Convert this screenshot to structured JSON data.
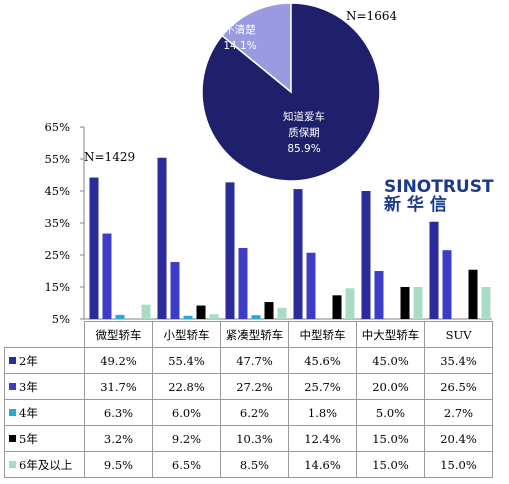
{
  "chart_data": [
    {
      "type": "pie",
      "annotation": "N=1664",
      "slices": [
        {
          "label": "知道爱车\n质保期",
          "value": 85.9,
          "value_label": "85.9%",
          "color": "#1f1f6b"
        },
        {
          "label": "不清楚",
          "value": 14.1,
          "value_label": "14.1%",
          "color": "#9a9ae0"
        }
      ]
    },
    {
      "type": "bar",
      "annotation": "N=1429",
      "categories": [
        "微型轿车",
        "小型轿车",
        "紧凑型轿车",
        "中型轿车",
        "中大型轿车",
        "SUV"
      ],
      "series": [
        {
          "name": "2年",
          "color": "#2b2b9a",
          "values": [
            49.2,
            55.4,
            47.7,
            45.6,
            45.0,
            35.4
          ],
          "labels": [
            "49.2%",
            "55.4%",
            "47.7%",
            "45.6%",
            "45.0%",
            "35.4%"
          ]
        },
        {
          "name": "3年",
          "color": "#3c3cc4",
          "values": [
            31.7,
            22.8,
            27.2,
            25.7,
            20.0,
            26.5
          ],
          "labels": [
            "31.7%",
            "22.8%",
            "27.2%",
            "25.7%",
            "20.0%",
            "26.5%"
          ]
        },
        {
          "name": "4年",
          "color": "#2ba7d6",
          "values": [
            6.3,
            6.0,
            6.2,
            1.8,
            5.0,
            2.7
          ],
          "labels": [
            "6.3%",
            "6.0%",
            "6.2%",
            "1.8%",
            "5.0%",
            "2.7%"
          ]
        },
        {
          "name": "5年",
          "color": "#000000",
          "values": [
            3.2,
            9.2,
            10.3,
            12.4,
            15.0,
            20.4
          ],
          "labels": [
            "3.2%",
            "9.2%",
            "10.3%",
            "12.4%",
            "15.0%",
            "20.4%"
          ]
        },
        {
          "name": "6年及以上",
          "color": "#a8dcc4",
          "values": [
            9.5,
            6.5,
            8.5,
            14.6,
            15.0,
            15.0
          ],
          "labels": [
            "9.5%",
            "6.5%",
            "8.5%",
            "14.6%",
            "15.0%",
            "15.0%"
          ]
        }
      ],
      "ylim": [
        5,
        65
      ],
      "yticks": [
        5,
        15,
        25,
        35,
        45,
        55,
        65
      ],
      "ytick_labels": [
        "5%",
        "15%",
        "25%",
        "35%",
        "45%",
        "55%",
        "65%"
      ],
      "grid": false,
      "legend": "data-table"
    }
  ],
  "brand": {
    "en": "SINOTRUST",
    "cn": "新 华 信"
  }
}
